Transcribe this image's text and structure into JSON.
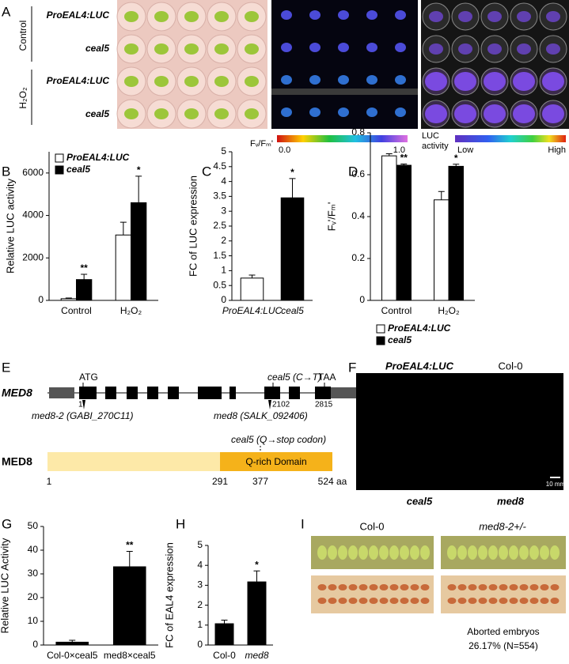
{
  "panel_labels": [
    "A",
    "B",
    "C",
    "D",
    "E",
    "F",
    "G",
    "H",
    "I"
  ],
  "panel_a": {
    "groups": [
      "Control",
      "H₂O₂"
    ],
    "rows": [
      "ProEAL4:LUC",
      "ceal5",
      "ProEAL4:LUC",
      "ceal5"
    ],
    "fvfm_label": "Fᵥ/Fₘ'",
    "fvfm_min": "0.0",
    "fvfm_max": "1.0",
    "luc_label": [
      "LUC",
      "activity"
    ],
    "luc_low": "Low",
    "luc_high": "High"
  },
  "panel_e": {
    "gene": "MED8",
    "start_codon": "ATG",
    "mutation": "ceal5 (C→T)",
    "stop_codon": "TAA",
    "positions": [
      "1",
      "2102",
      "2815"
    ],
    "alleles": [
      "med8-2 (GABI_270C11)",
      "med8 (SALK_092406)"
    ],
    "protein": "MED8",
    "protein_mutation": "ceal5 (Q→stop codon)",
    "domain": "Q-rich Domain",
    "aa_positions": [
      "1",
      "291",
      "377",
      "524 aa"
    ]
  },
  "panel_f": {
    "top_labels": [
      "ProEAL4:LUC",
      "Col-0"
    ],
    "bottom_labels": [
      "ceal5",
      "med8"
    ],
    "scale": "10 mm"
  },
  "panel_i": {
    "columns": [
      "Col-0",
      "med8-2+/-"
    ],
    "note": "Aborted embryos",
    "stat": "26.17% (N=554)"
  },
  "chart_data": [
    {
      "type": "bar",
      "ylabel": "Relative LUC activity",
      "categories": [
        "Control",
        "H₂O₂"
      ],
      "series": [
        {
          "name": "ProEAL4:LUC",
          "color": "#ffffff",
          "values": [
            80,
            3080
          ],
          "errors": [
            30,
            600
          ]
        },
        {
          "name": "ceal5",
          "color": "#000000",
          "values": [
            980,
            4600
          ],
          "errors": [
            250,
            1250
          ],
          "significance": [
            "**",
            "*"
          ]
        }
      ],
      "ylim": [
        0,
        7000
      ],
      "yticks": [
        0,
        2000,
        4000,
        6000
      ],
      "legend": "upper left"
    },
    {
      "type": "bar",
      "ylabel": "FC of LUC expression",
      "categories": [
        "ProEAL4:LUC",
        "ceal5"
      ],
      "values": [
        0.75,
        3.45
      ],
      "errors": [
        0.1,
        0.65
      ],
      "colors": [
        "#ffffff",
        "#000000"
      ],
      "significance": [
        null,
        "*"
      ],
      "ylim": [
        0,
        5
      ],
      "yticks": [
        0,
        0.5,
        1,
        1.5,
        2,
        2.5,
        3,
        3.5,
        4,
        4.5,
        5
      ]
    },
    {
      "type": "bar",
      "ylabel": "Fᵥ'/Fₘ'",
      "categories": [
        "Control",
        "H₂O₂"
      ],
      "series": [
        {
          "name": "ProEAL4:LUC",
          "color": "#ffffff",
          "values": [
            0.69,
            0.48
          ],
          "errors": [
            0.01,
            0.04
          ]
        },
        {
          "name": "ceal5",
          "color": "#000000",
          "values": [
            0.645,
            0.64
          ],
          "errors": [
            0.006,
            0.01
          ],
          "significance": [
            "**",
            "*"
          ]
        }
      ],
      "ylim": [
        0,
        0.8
      ],
      "yticks": [
        0,
        0.2,
        0.4,
        0.6,
        0.8
      ],
      "legend": "below"
    },
    {
      "type": "bar",
      "ylabel": "Relative LUC Activity",
      "categories": [
        "Col-0×ceal5",
        "med8×ceal5"
      ],
      "values": [
        1.2,
        33
      ],
      "errors": [
        0.8,
        6.5
      ],
      "color": "#000000",
      "significance": [
        null,
        "**"
      ],
      "ylim": [
        0,
        50
      ],
      "yticks": [
        0,
        10,
        20,
        30,
        40,
        50
      ]
    },
    {
      "type": "bar",
      "ylabel": "FC of EAL4 expression",
      "categories": [
        "Col-0",
        "med8"
      ],
      "values": [
        1.07,
        3.17
      ],
      "errors": [
        0.18,
        0.55
      ],
      "color": "#000000",
      "significance": [
        null,
        "*"
      ],
      "ylim": [
        0,
        5
      ],
      "yticks": [
        0,
        1,
        2,
        3,
        4,
        5
      ]
    }
  ]
}
